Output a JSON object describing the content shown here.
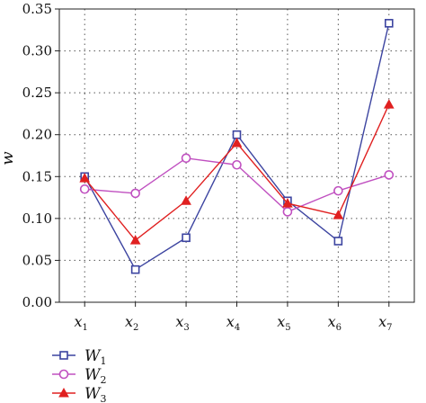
{
  "chart_data": {
    "type": "line",
    "ylabel": "w",
    "ylim": [
      0,
      0.35
    ],
    "yticks": [
      "0.00",
      "0.05",
      "0.10",
      "0.15",
      "0.20",
      "0.25",
      "0.30",
      "0.35"
    ],
    "categories": [
      {
        "base": "x",
        "sub": "1"
      },
      {
        "base": "x",
        "sub": "2"
      },
      {
        "base": "x",
        "sub": "3"
      },
      {
        "base": "x",
        "sub": "4"
      },
      {
        "base": "x",
        "sub": "5"
      },
      {
        "base": "x",
        "sub": "6"
      },
      {
        "base": "x",
        "sub": "7"
      }
    ],
    "grid": true,
    "legend_position": "bottom-left",
    "series": [
      {
        "name": "W",
        "sub": "1",
        "color": "#3c44a0",
        "marker": "square",
        "values": [
          0.15,
          0.039,
          0.077,
          0.2,
          0.121,
          0.073,
          0.333
        ]
      },
      {
        "name": "W",
        "sub": "2",
        "color": "#c050c0",
        "marker": "circle",
        "values": [
          0.135,
          0.13,
          0.172,
          0.164,
          0.108,
          0.133,
          0.152
        ]
      },
      {
        "name": "W",
        "sub": "3",
        "color": "#e02020",
        "marker": "triangle",
        "values": [
          0.148,
          0.074,
          0.121,
          0.19,
          0.118,
          0.104,
          0.236
        ]
      }
    ]
  }
}
